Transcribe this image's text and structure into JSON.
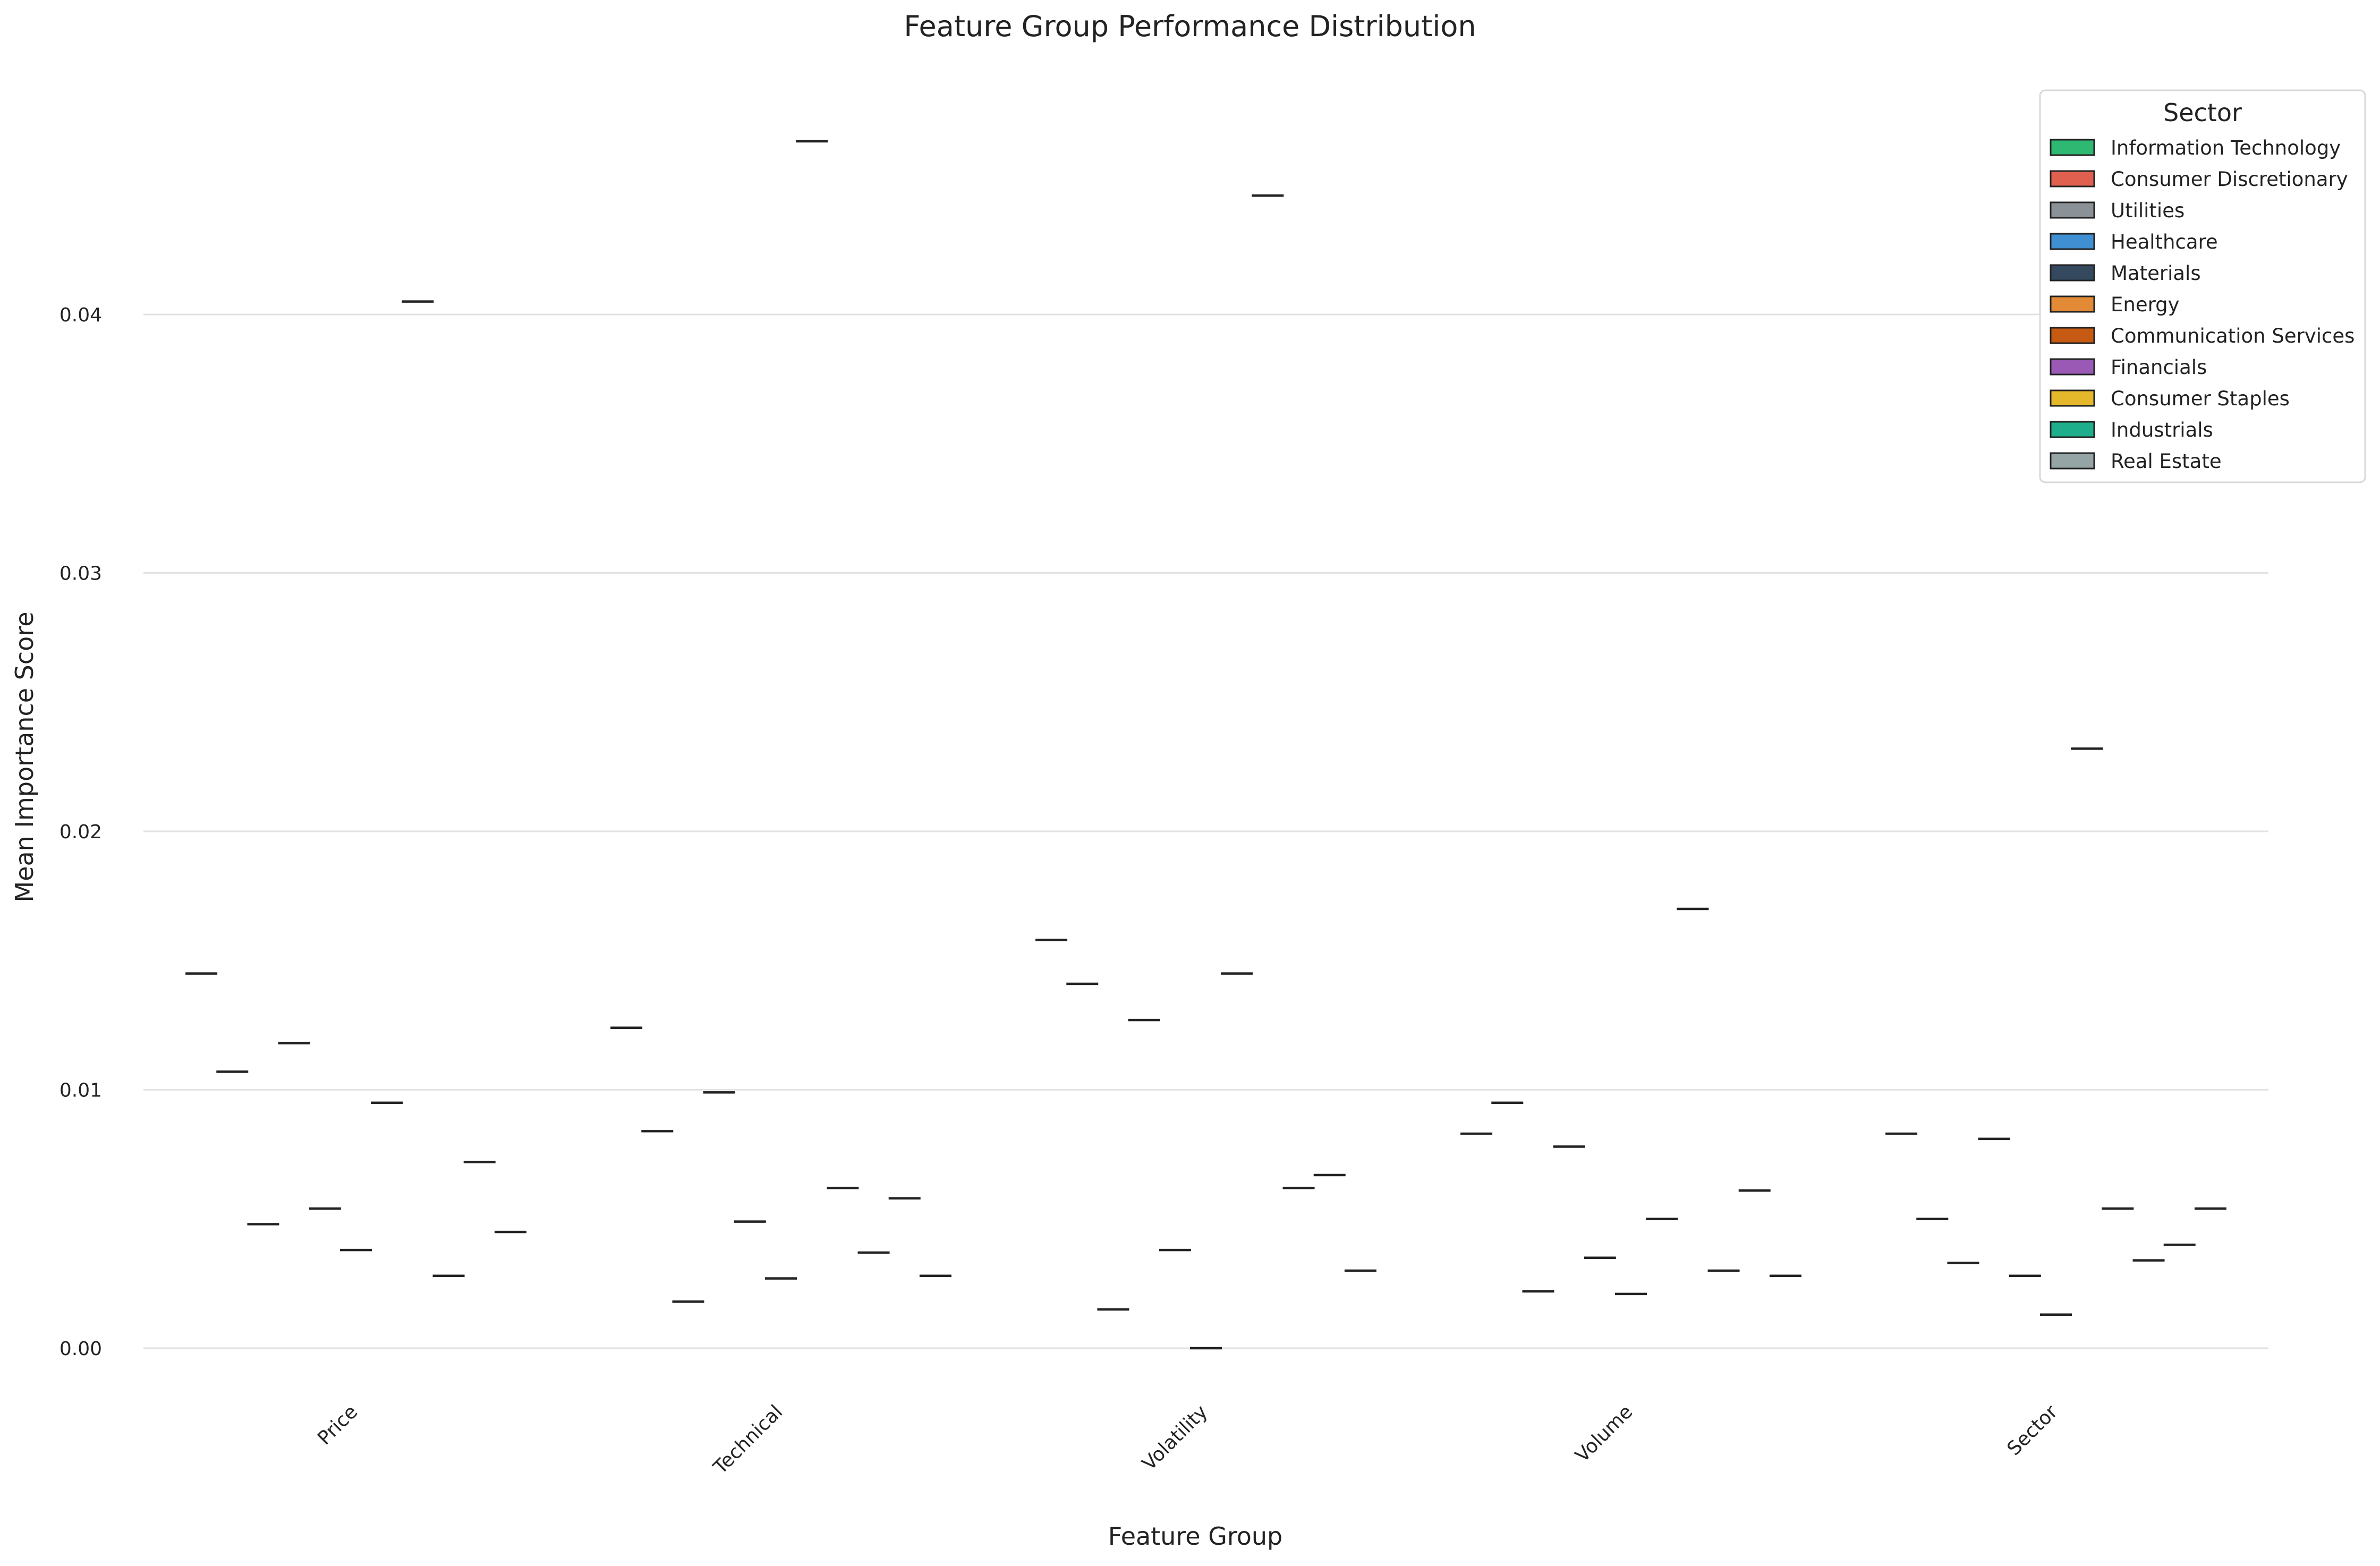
{
  "chart_data": {
    "type": "box",
    "title": "Feature Group Performance Distribution",
    "xlabel": "Feature Group",
    "ylabel": "Mean Importance Score",
    "categories": [
      "Price",
      "Technical",
      "Volatility",
      "Volume",
      "Sector"
    ],
    "ylim": [
      -0.0035,
      0.0505
    ],
    "yticks": [
      0.0,
      0.01,
      0.02,
      0.03,
      0.04
    ],
    "ytick_labels": [
      "0.00",
      "0.01",
      "0.02",
      "0.03",
      "0.04"
    ],
    "grid": "horizontal",
    "legend": {
      "title": "Sector",
      "placement": "top-right",
      "entries": [
        {
          "name": "Information Technology",
          "color": "#2EB872"
        },
        {
          "name": "Consumer Discretionary",
          "color": "#E0604F"
        },
        {
          "name": "Utilities",
          "color": "#8A9197"
        },
        {
          "name": "Healthcare",
          "color": "#3F8FD2"
        },
        {
          "name": "Materials",
          "color": "#34495E"
        },
        {
          "name": "Energy",
          "color": "#E28A35"
        },
        {
          "name": "Communication Services",
          "color": "#C75A12"
        },
        {
          "name": "Financials",
          "color": "#9B59B6"
        },
        {
          "name": "Consumer Staples",
          "color": "#E5B82B"
        },
        {
          "name": "Industrials",
          "color": "#1FAE8B"
        },
        {
          "name": "Real Estate",
          "color": "#95A5A6"
        }
      ]
    },
    "series": [
      {
        "name": "Information Technology",
        "values": [
          0.0145,
          0.0124,
          0.0158,
          0.0083,
          0.0083
        ]
      },
      {
        "name": "Consumer Discretionary",
        "values": [
          0.0107,
          0.0084,
          0.0141,
          0.0095,
          0.005
        ]
      },
      {
        "name": "Utilities",
        "values": [
          0.0048,
          0.0018,
          0.0015,
          0.0022,
          0.0033
        ]
      },
      {
        "name": "Healthcare",
        "values": [
          0.0118,
          0.0099,
          0.0127,
          0.0078,
          0.0081
        ]
      },
      {
        "name": "Materials",
        "values": [
          0.0054,
          0.0049,
          0.0038,
          0.0035,
          0.0028
        ]
      },
      {
        "name": "Energy",
        "values": [
          0.0038,
          0.0027,
          0.0,
          0.0021,
          0.0013
        ]
      },
      {
        "name": "Communication Services",
        "values": [
          0.0095,
          0.0467,
          0.0145,
          0.005,
          0.0232
        ]
      },
      {
        "name": "Financials",
        "values": [
          0.0405,
          0.0062,
          0.0446,
          0.017,
          0.0054
        ]
      },
      {
        "name": "Consumer Staples",
        "values": [
          0.0028,
          0.0037,
          0.0062,
          0.003,
          0.0034
        ]
      },
      {
        "name": "Industrials",
        "values": [
          0.0072,
          0.0058,
          0.0067,
          0.0061,
          0.004
        ]
      },
      {
        "name": "Real Estate",
        "values": [
          0.0045,
          0.0028,
          0.003,
          0.0028,
          0.0054
        ]
      }
    ]
  }
}
